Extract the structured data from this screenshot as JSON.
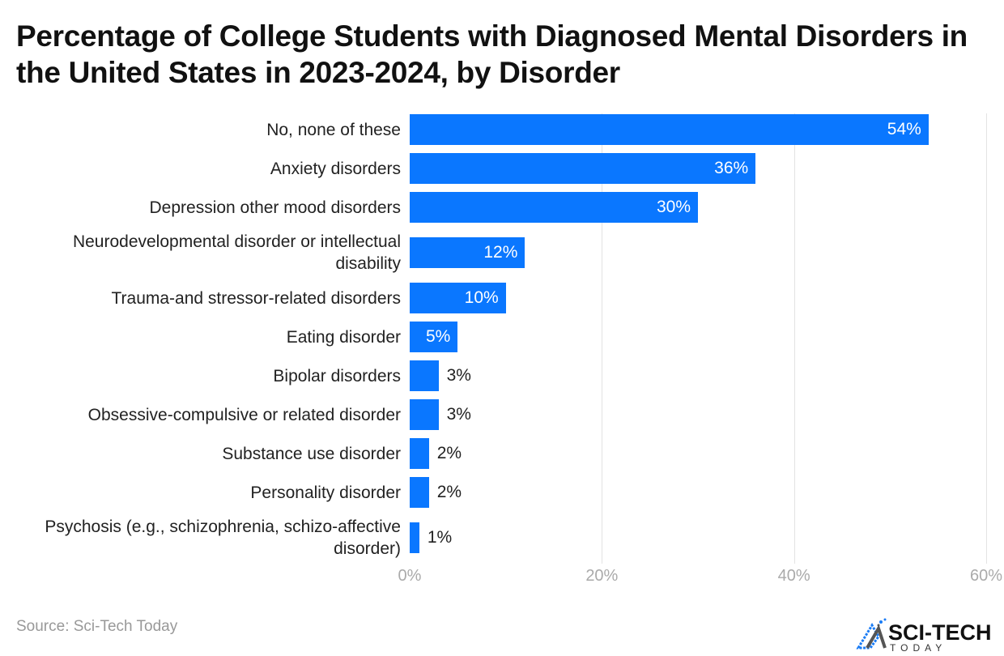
{
  "chart_data": {
    "type": "bar",
    "orientation": "horizontal",
    "title": "Percentage of College Students with Diagnosed Mental Disorders in the United States in 2023-2024, by Disorder",
    "categories": [
      "No, none of these",
      "Anxiety disorders",
      "Depression other mood disorders",
      "Neurodevelopmental disorder or intellectual disability",
      "Trauma-and stressor-related disorders",
      "Eating disorder",
      "Bipolar disorders",
      "Obsessive-compulsive or related disorder",
      "Substance use disorder",
      "Personality disorder",
      "Psychosis (e.g., schizophrenia, schizo-affective disorder)"
    ],
    "values": [
      54,
      36,
      30,
      12,
      10,
      5,
      3,
      3,
      2,
      2,
      1
    ],
    "data_labels": [
      "54%",
      "36%",
      "30%",
      "12%",
      "10%",
      "5%",
      "3%",
      "3%",
      "2%",
      "2%",
      "1%"
    ],
    "xlim": [
      0,
      60
    ],
    "x_ticks": [
      "0%",
      "20%",
      "40%",
      "60%"
    ],
    "grid": true,
    "bar_color": "#0a77ff"
  },
  "source": "Source: Sci-Tech Today",
  "logo": {
    "text": "SCI-TECH",
    "subtext": "TODAY"
  }
}
